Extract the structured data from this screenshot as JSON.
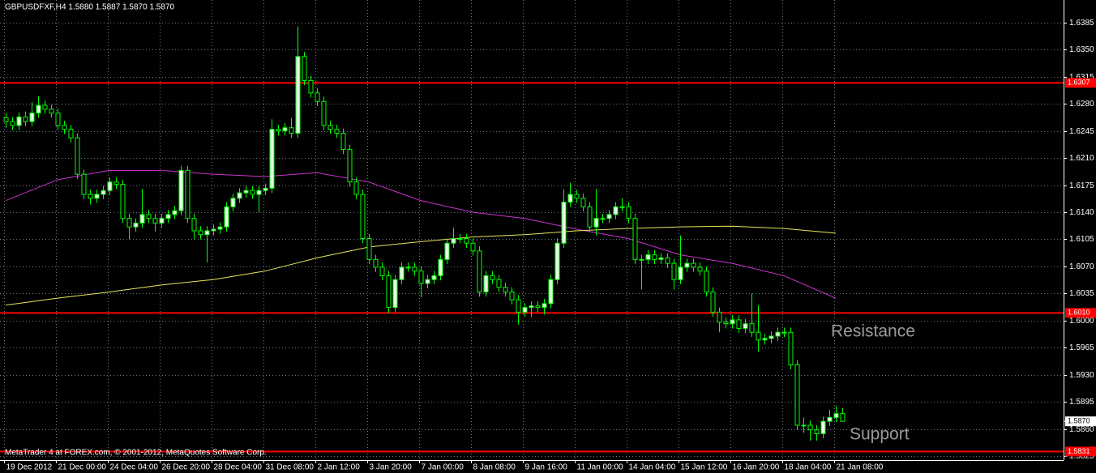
{
  "chart_data": {
    "type": "candlestick",
    "title": "GBPUSDFXF,H4  1.5880 1.5887 1.5870 1.5870",
    "footer": "MetaTrader 4 at FOREX.com, © 2001-2012, MetaQuotes Software Corp.",
    "annotations": [
      "Resistance",
      "Support"
    ],
    "candle_outline": "#00ff00",
    "up_fill": "#e8ffe8",
    "down_fill": "#000000",
    "grid": true,
    "ylim": [
      1.582,
      1.6414
    ],
    "yticks": [
      1.6385,
      {
        "value": 1.635,
        "label": "1.6350"
      },
      1.6315,
      {
        "value": 1.628,
        "label": "1.6280"
      },
      1.6245,
      {
        "value": 1.621,
        "label": "1.6210"
      },
      1.6175,
      {
        "value": 1.614,
        "label": "1.6140"
      },
      1.6105,
      {
        "value": 1.607,
        "label": "1.6070"
      },
      1.6035,
      {
        "value": 1.6,
        "label": "1.6000"
      },
      1.5965,
      {
        "value": 1.593,
        "label": "1.5930"
      },
      1.5895,
      {
        "value": 1.586,
        "label": "1.5860"
      },
      1.5825
    ],
    "xticks": [
      {
        "value": 0,
        "label": "19 Dec 2012"
      },
      {
        "value": 8,
        "label": "21 Dec 00:00"
      },
      {
        "value": 16,
        "label": "24 Dec 04:00"
      },
      {
        "value": 24,
        "label": "26 Dec 20:00"
      },
      {
        "value": 32,
        "label": "28 Dec 04:00"
      },
      {
        "value": 40,
        "label": "31 Dec 08:00"
      },
      {
        "value": 48,
        "label": "2 Jan 12:00"
      },
      {
        "value": 56,
        "label": "3 Jan 20:00"
      },
      {
        "value": 64,
        "label": "7 Jan 00:00"
      },
      {
        "value": 72,
        "label": "8 Jan 08:00"
      },
      {
        "value": 80,
        "label": "9 Jan 16:00"
      },
      {
        "value": 88,
        "label": "11 Jan 00:00"
      },
      {
        "value": 96,
        "label": "14 Jan 04:00"
      },
      {
        "value": 104,
        "label": "15 Jan 12:00"
      },
      {
        "value": 112,
        "label": "16 Jan 20:00"
      },
      {
        "value": 120,
        "label": "18 Jan 04:00"
      },
      {
        "value": 128,
        "label": "21 Jan 08:00"
      }
    ],
    "hline_color": "#ff0000",
    "hlines": [
      {
        "value": 1.6307,
        "label": "1.6307"
      },
      {
        "value": 1.601,
        "label": "1.6010"
      },
      {
        "value": 1.5831,
        "label": "1.5831"
      }
    ],
    "last_price": {
      "value": 1.587,
      "label": "1.5870"
    },
    "lines": [
      {
        "color": "#cc33cc",
        "x": [
          0,
          8,
          16,
          24,
          32,
          40,
          48,
          56,
          64,
          72,
          80,
          88,
          96,
          104,
          112,
          120,
          128
        ],
        "values": [
          1.6155,
          1.6182,
          1.6194,
          1.6194,
          1.6189,
          1.6186,
          1.6191,
          1.6179,
          1.6155,
          1.614,
          1.6132,
          1.6118,
          1.6106,
          1.6085,
          1.6074,
          1.6058,
          1.6029
        ]
      },
      {
        "color": "#e6e65c",
        "x": [
          0,
          8,
          16,
          24,
          32,
          40,
          48,
          56,
          64,
          72,
          80,
          88,
          96,
          104,
          112,
          120,
          128
        ],
        "values": [
          1.602,
          1.6029,
          1.6037,
          1.6046,
          1.6053,
          1.6064,
          1.6081,
          1.6095,
          1.6102,
          1.6108,
          1.6111,
          1.6116,
          1.6119,
          1.6121,
          1.6122,
          1.6119,
          1.6113
        ]
      }
    ],
    "ohlc": [
      [
        1.6262,
        1.6268,
        1.6249,
        1.6257
      ],
      [
        1.6257,
        1.6263,
        1.6246,
        1.6252
      ],
      [
        1.6252,
        1.6269,
        1.6246,
        1.6263
      ],
      [
        1.6263,
        1.627,
        1.6251,
        1.6257
      ],
      [
        1.6257,
        1.6282,
        1.6251,
        1.6268
      ],
      [
        1.6268,
        1.629,
        1.6262,
        1.6278
      ],
      [
        1.6278,
        1.6284,
        1.6267,
        1.6273
      ],
      [
        1.6273,
        1.6279,
        1.6262,
        1.6268
      ],
      [
        1.6268,
        1.6274,
        1.6246,
        1.6252
      ],
      [
        1.6252,
        1.6258,
        1.6241,
        1.6247
      ],
      [
        1.6247,
        1.6253,
        1.623,
        1.6236
      ],
      [
        1.6236,
        1.6242,
        1.6183,
        1.6189
      ],
      [
        1.6189,
        1.6195,
        1.6157,
        1.6163
      ],
      [
        1.6163,
        1.6169,
        1.615,
        1.6158
      ],
      [
        1.6158,
        1.6169,
        1.6152,
        1.6163
      ],
      [
        1.6163,
        1.6174,
        1.6157,
        1.6168
      ],
      [
        1.6168,
        1.6185,
        1.6162,
        1.6179
      ],
      [
        1.6179,
        1.6185,
        1.617,
        1.6176
      ],
      [
        1.6176,
        1.6182,
        1.6126,
        1.6132
      ],
      [
        1.6132,
        1.6138,
        1.6105,
        1.6121
      ],
      [
        1.6121,
        1.6132,
        1.6115,
        1.6126
      ],
      [
        1.6126,
        1.617,
        1.612,
        1.6137
      ],
      [
        1.6137,
        1.6143,
        1.6126,
        1.6132
      ],
      [
        1.6132,
        1.6138,
        1.6115,
        1.6126
      ],
      [
        1.6126,
        1.6138,
        1.612,
        1.6132
      ],
      [
        1.6132,
        1.6143,
        1.6126,
        1.6137
      ],
      [
        1.6137,
        1.6148,
        1.6131,
        1.6142
      ],
      [
        1.6142,
        1.62,
        1.6136,
        1.6194
      ],
      [
        1.6194,
        1.62,
        1.6126,
        1.6132
      ],
      [
        1.6132,
        1.6138,
        1.6105,
        1.6116
      ],
      [
        1.6116,
        1.6122,
        1.6105,
        1.6111
      ],
      [
        1.6111,
        1.6122,
        1.6075,
        1.6116
      ],
      [
        1.6116,
        1.6124,
        1.611,
        1.6118
      ],
      [
        1.6118,
        1.6127,
        1.6112,
        1.6121
      ],
      [
        1.6121,
        1.6153,
        1.6115,
        1.6147
      ],
      [
        1.6147,
        1.6164,
        1.6141,
        1.6158
      ],
      [
        1.6158,
        1.6171,
        1.6152,
        1.6165
      ],
      [
        1.6165,
        1.6174,
        1.6159,
        1.6168
      ],
      [
        1.6168,
        1.6174,
        1.6157,
        1.6163
      ],
      [
        1.6163,
        1.6174,
        1.614,
        1.6168
      ],
      [
        1.6168,
        1.6177,
        1.6162,
        1.6171
      ],
      [
        1.6171,
        1.626,
        1.6165,
        1.6247
      ],
      [
        1.6247,
        1.6253,
        1.6239,
        1.6245
      ],
      [
        1.6245,
        1.6255,
        1.6239,
        1.6249
      ],
      [
        1.6249,
        1.6262,
        1.6236,
        1.6242
      ],
      [
        1.6242,
        1.638,
        1.6236,
        1.6341
      ],
      [
        1.6341,
        1.6347,
        1.6304,
        1.631
      ],
      [
        1.631,
        1.6316,
        1.6288,
        1.6294
      ],
      [
        1.6294,
        1.63,
        1.6277,
        1.6283
      ],
      [
        1.6283,
        1.6289,
        1.6246,
        1.6252
      ],
      [
        1.6252,
        1.6258,
        1.6241,
        1.6247
      ],
      [
        1.6247,
        1.6253,
        1.6236,
        1.6242
      ],
      [
        1.6242,
        1.6248,
        1.6215,
        1.6221
      ],
      [
        1.6221,
        1.6227,
        1.6173,
        1.6179
      ],
      [
        1.6179,
        1.6185,
        1.6157,
        1.6163
      ],
      [
        1.6163,
        1.6169,
        1.61,
        1.6106
      ],
      [
        1.6106,
        1.6112,
        1.6073,
        1.6079
      ],
      [
        1.6079,
        1.6085,
        1.6063,
        1.6069
      ],
      [
        1.6069,
        1.6075,
        1.6052,
        1.6058
      ],
      [
        1.6058,
        1.6064,
        1.601,
        1.6017
      ],
      [
        1.6017,
        1.6059,
        1.6011,
        1.6053
      ],
      [
        1.6053,
        1.6075,
        1.6047,
        1.6069
      ],
      [
        1.6069,
        1.6075,
        1.6063,
        1.6069
      ],
      [
        1.6069,
        1.6075,
        1.6058,
        1.6064
      ],
      [
        1.6064,
        1.607,
        1.603,
        1.6048
      ],
      [
        1.6048,
        1.6059,
        1.6042,
        1.6053
      ],
      [
        1.6053,
        1.6064,
        1.6047,
        1.6058
      ],
      [
        1.6058,
        1.6085,
        1.6052,
        1.6079
      ],
      [
        1.6079,
        1.6106,
        1.6073,
        1.61
      ],
      [
        1.61,
        1.612,
        1.6094,
        1.6106
      ],
      [
        1.6106,
        1.6112,
        1.61,
        1.6106
      ],
      [
        1.6106,
        1.6112,
        1.6094,
        1.61
      ],
      [
        1.61,
        1.6106,
        1.6084,
        1.609
      ],
      [
        1.609,
        1.6096,
        1.6031,
        1.6037
      ],
      [
        1.6037,
        1.6064,
        1.6031,
        1.6058
      ],
      [
        1.6058,
        1.6064,
        1.6047,
        1.6053
      ],
      [
        1.6053,
        1.6059,
        1.6037,
        1.6043
      ],
      [
        1.6043,
        1.6049,
        1.6031,
        1.6037
      ],
      [
        1.6037,
        1.6043,
        1.6021,
        1.6027
      ],
      [
        1.6027,
        1.6033,
        1.5995,
        1.6011
      ],
      [
        1.6011,
        1.6023,
        1.6005,
        1.6017
      ],
      [
        1.6017,
        1.6025,
        1.6005,
        1.6019
      ],
      [
        1.6019,
        1.6025,
        1.6011,
        1.6017
      ],
      [
        1.6017,
        1.6028,
        1.6008,
        1.6022
      ],
      [
        1.6022,
        1.6059,
        1.6016,
        1.6053
      ],
      [
        1.6053,
        1.6106,
        1.6047,
        1.61
      ],
      [
        1.61,
        1.617,
        1.6094,
        1.6153
      ],
      [
        1.6153,
        1.6178,
        1.6147,
        1.6163
      ],
      [
        1.6163,
        1.6169,
        1.6152,
        1.6158
      ],
      [
        1.6158,
        1.6164,
        1.6141,
        1.6147
      ],
      [
        1.6147,
        1.6153,
        1.6115,
        1.6121
      ],
      [
        1.6121,
        1.617,
        1.611,
        1.6132
      ],
      [
        1.6132,
        1.6138,
        1.6126,
        1.6132
      ],
      [
        1.6132,
        1.6143,
        1.6126,
        1.6137
      ],
      [
        1.6137,
        1.6153,
        1.6131,
        1.6147
      ],
      [
        1.6147,
        1.6158,
        1.6141,
        1.6147
      ],
      [
        1.6147,
        1.6153,
        1.6126,
        1.6132
      ],
      [
        1.6132,
        1.6138,
        1.6073,
        1.6079
      ],
      [
        1.6079,
        1.6085,
        1.604,
        1.6079
      ],
      [
        1.6079,
        1.6091,
        1.6073,
        1.6085
      ],
      [
        1.6085,
        1.6091,
        1.6073,
        1.6079
      ],
      [
        1.6079,
        1.6087,
        1.6073,
        1.6081
      ],
      [
        1.6081,
        1.6087,
        1.6068,
        1.6074
      ],
      [
        1.6074,
        1.608,
        1.604,
        1.6053
      ],
      [
        1.6053,
        1.611,
        1.6047,
        1.6069
      ],
      [
        1.6069,
        1.608,
        1.6063,
        1.6074
      ],
      [
        1.6074,
        1.608,
        1.6063,
        1.6069
      ],
      [
        1.6069,
        1.6075,
        1.6058,
        1.6064
      ],
      [
        1.6064,
        1.607,
        1.6031,
        1.6037
      ],
      [
        1.6037,
        1.6043,
        1.6005,
        1.6011
      ],
      [
        1.6011,
        1.6017,
        1.5985,
        1.5998
      ],
      [
        1.5998,
        1.6004,
        1.599,
        1.5996
      ],
      [
        1.5996,
        1.6007,
        1.599,
        1.6001
      ],
      [
        1.6001,
        1.6007,
        1.5984,
        1.599
      ],
      [
        1.599,
        1.6002,
        1.5984,
        1.5996
      ],
      [
        1.5996,
        1.6035,
        1.5979,
        1.5985
      ],
      [
        1.5985,
        1.602,
        1.596,
        1.5975
      ],
      [
        1.5975,
        1.5983,
        1.5969,
        1.5977
      ],
      [
        1.5977,
        1.5986,
        1.5971,
        1.598
      ],
      [
        1.598,
        1.5991,
        1.5974,
        1.5985
      ],
      [
        1.5985,
        1.5991,
        1.5979,
        1.5985
      ],
      [
        1.5985,
        1.5991,
        1.5937,
        1.5943
      ],
      [
        1.5943,
        1.5949,
        1.5859,
        1.5865
      ],
      [
        1.5865,
        1.5875,
        1.5855,
        1.5865
      ],
      [
        1.5865,
        1.5871,
        1.5845,
        1.5859
      ],
      [
        1.5859,
        1.5865,
        1.5845,
        1.5854
      ],
      [
        1.5854,
        1.5876,
        1.5848,
        1.587
      ],
      [
        1.587,
        1.5885,
        1.5864,
        1.5875
      ],
      [
        1.5875,
        1.589,
        1.5869,
        1.588
      ],
      [
        1.588,
        1.5887,
        1.587,
        1.587
      ]
    ]
  }
}
